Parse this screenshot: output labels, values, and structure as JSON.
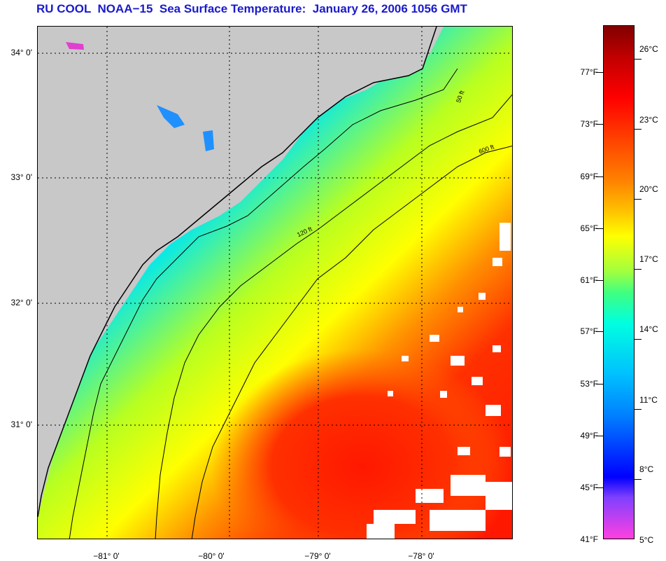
{
  "title": "RU COOL  NOAA−15  Sea Surface Temperature:  January 26, 2006 1056 GMT",
  "latitude_labels": [
    "34° 0'",
    "33° 0'",
    "32° 0'",
    "31° 0'"
  ],
  "longitude_labels": [
    "−81° 0'",
    "−80° 0'",
    "−79° 0'",
    "−78° 0'"
  ],
  "contour_labels": [
    "50 ft",
    "120 ft",
    "600 ft"
  ],
  "legend": {
    "fahrenheit": [
      "77°F",
      "73°F",
      "69°F",
      "65°F",
      "61°F",
      "57°F",
      "53°F",
      "49°F",
      "45°F",
      "41°F"
    ],
    "celsius": [
      "26°C",
      "23°C",
      "20°C",
      "17°C",
      "14°C",
      "11°C",
      "8°C",
      "5°C"
    ]
  },
  "colors": {
    "title": "#1a1acc",
    "land": "#c8c8c8",
    "cold": "#00a8ff",
    "cool": "#00e8f0",
    "mild": "#ffff00",
    "warm": "#ff8000",
    "hot": "#ff2000"
  }
}
